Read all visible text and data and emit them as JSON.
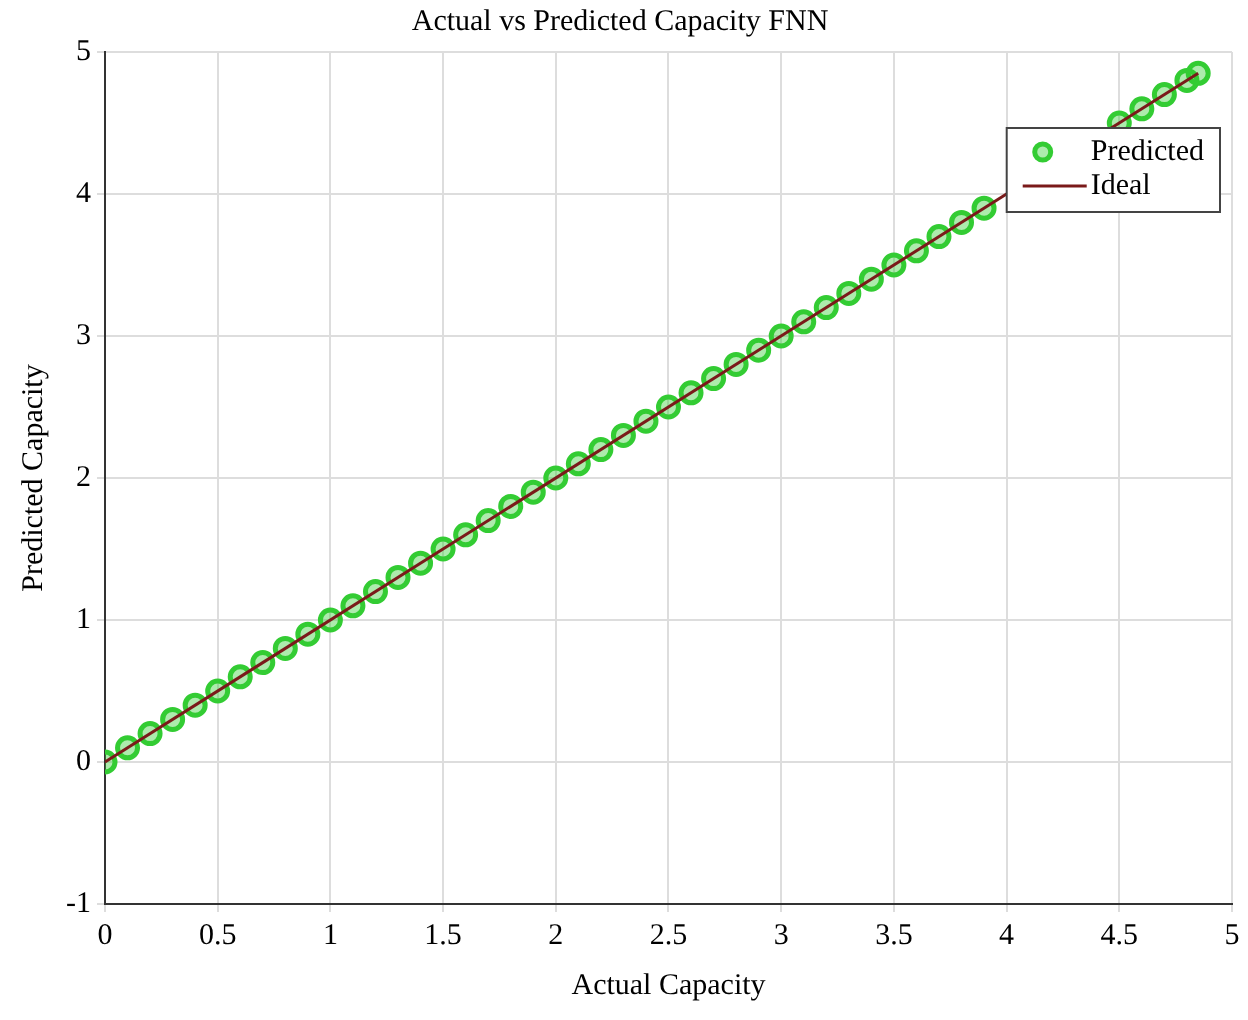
{
  "chart_data": {
    "type": "scatter",
    "title": "Actual vs Predicted Capacity FNN",
    "xlabel": "Actual Capacity",
    "ylabel": "Predicted Capacity",
    "xlim": [
      0,
      5
    ],
    "ylim": [
      -1,
      5
    ],
    "xticks": [
      0,
      0.5,
      1,
      1.5,
      2,
      2.5,
      3,
      3.5,
      4,
      4.5,
      5
    ],
    "yticks": [
      -1,
      0,
      1,
      2,
      3,
      4,
      5
    ],
    "grid": true,
    "legend": "top right",
    "series": [
      {
        "name": "Predicted",
        "type": "scatter",
        "marker": "circle",
        "color": "#33cc33",
        "x": [
          0,
          0.1,
          0.2,
          0.3,
          0.4,
          0.5,
          0.6,
          0.7,
          0.8,
          0.9,
          1,
          1.1,
          1.2,
          1.3,
          1.4,
          1.5,
          1.6,
          1.7,
          1.8,
          1.9,
          2,
          2.1,
          2.2,
          2.3,
          2.4,
          2.5,
          2.6,
          2.7,
          2.8,
          2.9,
          3,
          3.1,
          3.2,
          3.3,
          3.4,
          3.5,
          3.6,
          3.7,
          3.8,
          3.9,
          4,
          4.1,
          4.2,
          4.3,
          4.4,
          4.5,
          4.6,
          4.7,
          4.8,
          4.85
        ],
        "values": [
          0,
          0.1,
          0.2,
          0.3,
          0.4,
          0.5,
          0.6,
          0.7,
          0.8,
          0.9,
          1,
          1.1,
          1.2,
          1.3,
          1.4,
          1.5,
          1.6,
          1.7,
          1.8,
          1.9,
          2,
          2.1,
          2.2,
          2.3,
          2.4,
          2.5,
          2.6,
          2.7,
          2.8,
          2.9,
          3,
          3.1,
          3.2,
          3.3,
          3.4,
          3.5,
          3.6,
          3.7,
          3.8,
          3.9,
          null,
          null,
          null,
          null,
          null,
          4.5,
          4.6,
          4.7,
          4.8,
          4.85
        ]
      },
      {
        "name": "Ideal",
        "type": "line",
        "marker": "none",
        "line_style": "solid",
        "color": "#7a1a1a",
        "x": [
          0,
          4.85
        ],
        "values": [
          0,
          4.85
        ]
      }
    ]
  }
}
